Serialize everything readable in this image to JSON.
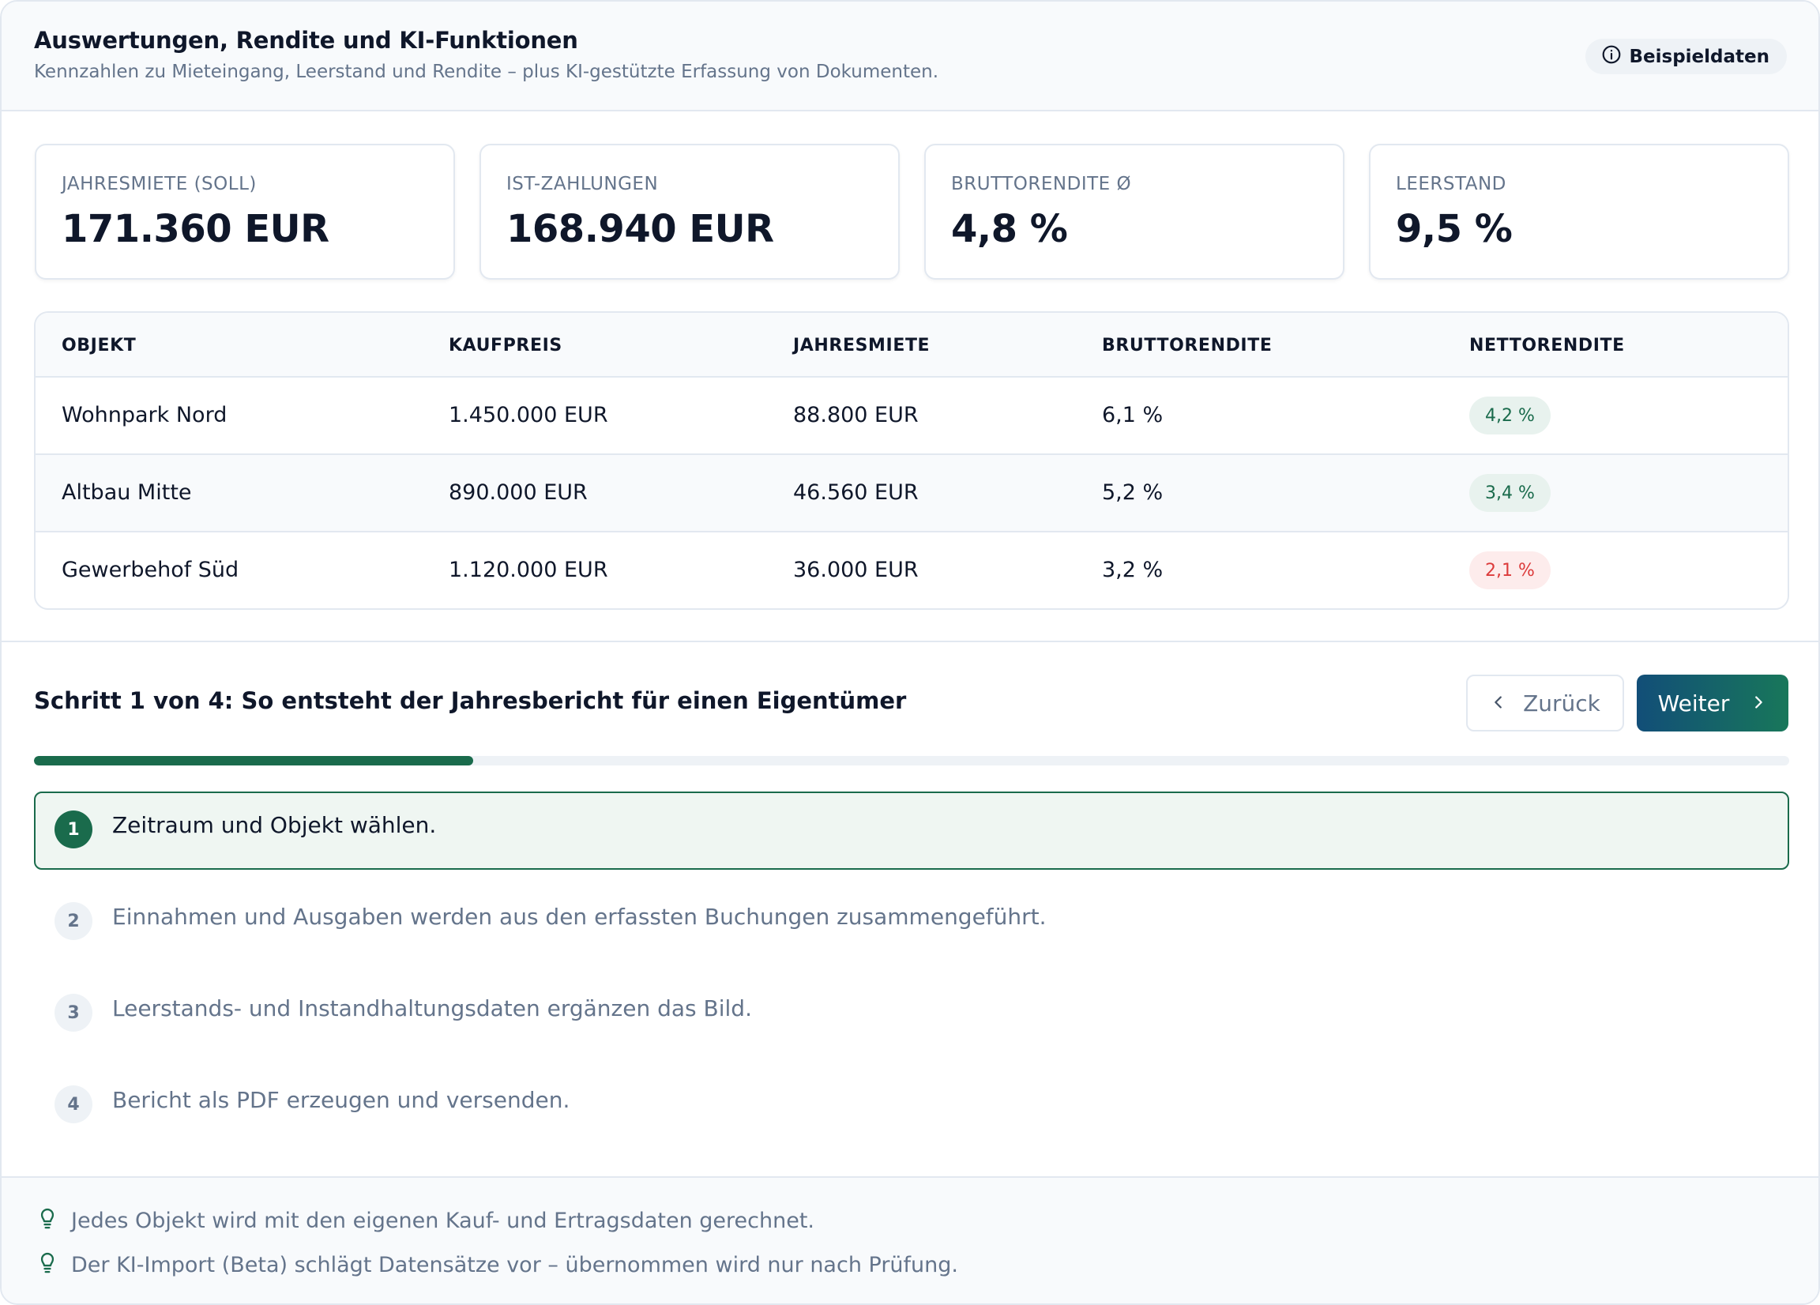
{
  "header": {
    "title": "Auswertungen, Rendite und KI-Funktionen",
    "subtitle": "Kennzahlen zu Mieteingang, Leerstand und Rendite – plus KI-gestützte Erfassung von Dokumenten.",
    "badge_label": "Beispieldaten",
    "badge_icon": "info-icon"
  },
  "kpis": [
    {
      "label": "JAHRESMIETE (SOLL)",
      "value": "171.360 EUR"
    },
    {
      "label": "IST-ZAHLUNGEN",
      "value": "168.940 EUR"
    },
    {
      "label": "BRUTTORENDITE Ø",
      "value": "4,8 %"
    },
    {
      "label": "LEERSTAND",
      "value": "9,5 %"
    }
  ],
  "table": {
    "columns": [
      "OBJEKT",
      "KAUFPREIS",
      "JAHRESMIETE",
      "BRUTTORENDITE",
      "NETTORENDITE"
    ],
    "rows": [
      {
        "objekt": "Wohnpark Nord",
        "kaufpreis": "1.450.000 EUR",
        "jahresmiete": "88.800 EUR",
        "brutto": "6,1 %",
        "netto": "4,2 %",
        "netto_status": "good"
      },
      {
        "objekt": "Altbau Mitte",
        "kaufpreis": "890.000 EUR",
        "jahresmiete": "46.560 EUR",
        "brutto": "5,2 %",
        "netto": "3,4 %",
        "netto_status": "good"
      },
      {
        "objekt": "Gewerbehof Süd",
        "kaufpreis": "1.120.000 EUR",
        "jahresmiete": "36.000 EUR",
        "brutto": "3,2 %",
        "netto": "2,1 %",
        "netto_status": "bad"
      }
    ]
  },
  "wizard": {
    "title": "Schritt 1 von 4: So entsteht der Jahresbericht für einen Eigentümer",
    "back_label": "Zurück",
    "next_label": "Weiter",
    "progress": 0.25,
    "steps": [
      {
        "num": "1",
        "text": "Zeitraum und Objekt wählen.",
        "active": true
      },
      {
        "num": "2",
        "text": "Einnahmen und Ausgaben werden aus den erfassten Buchungen zusammengeführt.",
        "active": false
      },
      {
        "num": "3",
        "text": "Leerstands- und Instandhaltungsdaten ergänzen das Bild.",
        "active": false
      },
      {
        "num": "4",
        "text": "Bericht als PDF erzeugen und versenden.",
        "active": false
      }
    ]
  },
  "tips": [
    {
      "icon": "lightbulb-icon",
      "text": "Jedes Objekt wird mit den eigenen Kauf- und Ertragsdaten gerechnet."
    },
    {
      "icon": "lightbulb-icon",
      "text": "Der KI-Import (Beta) schlägt Datensätze vor – übernommen wird nur nach Prüfung."
    }
  ],
  "colors": {
    "accent_green": "#1a6b4c",
    "accent_blue": "#124e78",
    "positive_bg": "#e8f2ee",
    "negative_text": "#dc3b3b",
    "negative_bg": "#fdecec"
  }
}
